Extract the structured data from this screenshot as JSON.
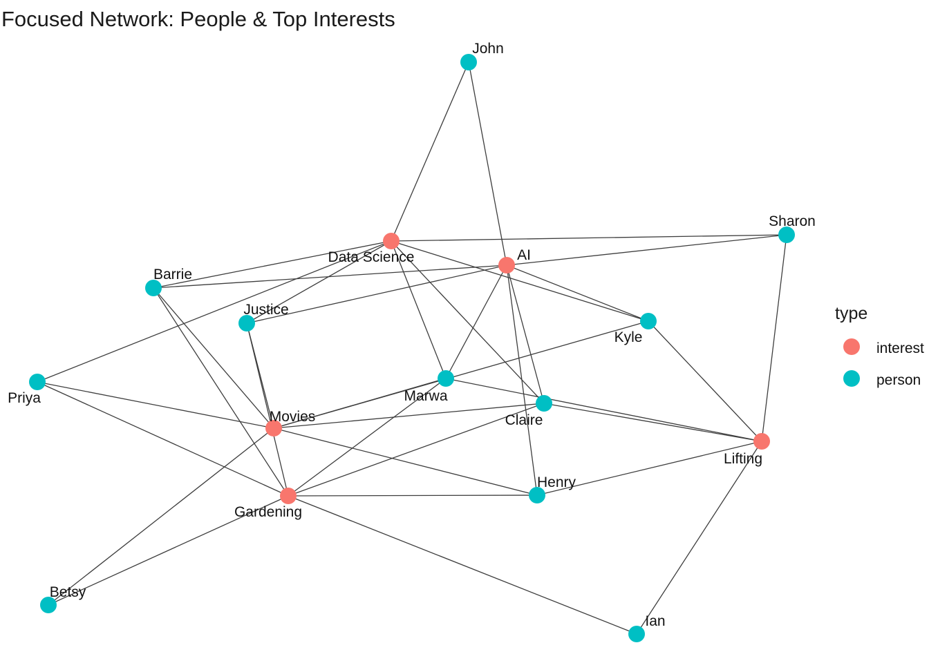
{
  "title": "Focused Network: People & Top Interests",
  "colors": {
    "interest": "#F8766D",
    "person": "#00BFC4",
    "edge": "#3d3d3d"
  },
  "legend": {
    "title": "type",
    "items": [
      {
        "key": "interest",
        "label": "interest"
      },
      {
        "key": "person",
        "label": "person"
      }
    ]
  },
  "nodes": [
    {
      "id": "data-science",
      "label": "Data Science",
      "type": "interest"
    },
    {
      "id": "ai",
      "label": "AI",
      "type": "interest"
    },
    {
      "id": "movies",
      "label": "Movies",
      "type": "interest"
    },
    {
      "id": "gardening",
      "label": "Gardening",
      "type": "interest"
    },
    {
      "id": "lifting",
      "label": "Lifting",
      "type": "interest"
    },
    {
      "id": "john",
      "label": "John",
      "type": "person"
    },
    {
      "id": "sharon",
      "label": "Sharon",
      "type": "person"
    },
    {
      "id": "barrie",
      "label": "Barrie",
      "type": "person"
    },
    {
      "id": "justice",
      "label": "Justice",
      "type": "person"
    },
    {
      "id": "kyle",
      "label": "Kyle",
      "type": "person"
    },
    {
      "id": "priya",
      "label": "Priya",
      "type": "person"
    },
    {
      "id": "marwa",
      "label": "Marwa",
      "type": "person"
    },
    {
      "id": "claire",
      "label": "Claire",
      "type": "person"
    },
    {
      "id": "henry",
      "label": "Henry",
      "type": "person"
    },
    {
      "id": "betsy",
      "label": "Betsy",
      "type": "person"
    },
    {
      "id": "ian",
      "label": "Ian",
      "type": "person"
    }
  ],
  "edges": [
    [
      "john",
      "data-science"
    ],
    [
      "john",
      "ai"
    ],
    [
      "sharon",
      "data-science"
    ],
    [
      "sharon",
      "ai"
    ],
    [
      "sharon",
      "lifting"
    ],
    [
      "barrie",
      "data-science"
    ],
    [
      "barrie",
      "ai"
    ],
    [
      "barrie",
      "movies"
    ],
    [
      "barrie",
      "gardening"
    ],
    [
      "justice",
      "data-science"
    ],
    [
      "justice",
      "ai"
    ],
    [
      "justice",
      "movies"
    ],
    [
      "justice",
      "gardening"
    ],
    [
      "kyle",
      "data-science"
    ],
    [
      "kyle",
      "ai"
    ],
    [
      "kyle",
      "movies"
    ],
    [
      "kyle",
      "lifting"
    ],
    [
      "priya",
      "data-science"
    ],
    [
      "priya",
      "movies"
    ],
    [
      "priya",
      "gardening"
    ],
    [
      "marwa",
      "data-science"
    ],
    [
      "marwa",
      "ai"
    ],
    [
      "marwa",
      "movies"
    ],
    [
      "marwa",
      "gardening"
    ],
    [
      "marwa",
      "lifting"
    ],
    [
      "claire",
      "data-science"
    ],
    [
      "claire",
      "ai"
    ],
    [
      "claire",
      "movies"
    ],
    [
      "claire",
      "gardening"
    ],
    [
      "claire",
      "lifting"
    ],
    [
      "henry",
      "ai"
    ],
    [
      "henry",
      "movies"
    ],
    [
      "henry",
      "gardening"
    ],
    [
      "henry",
      "lifting"
    ],
    [
      "betsy",
      "movies"
    ],
    [
      "betsy",
      "gardening"
    ],
    [
      "ian",
      "gardening"
    ],
    [
      "ian",
      "lifting"
    ]
  ]
}
